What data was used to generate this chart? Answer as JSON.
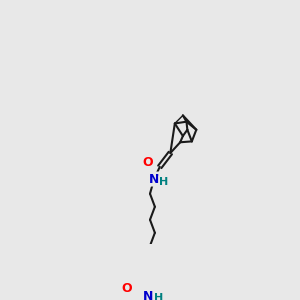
{
  "background_color": "#e8e8e8",
  "bond_color": "#1a1a1a",
  "atom_colors": {
    "O": "#ff0000",
    "N": "#0000cc",
    "H": "#008080",
    "C": "#1a1a1a"
  },
  "figsize": [
    3.0,
    3.0
  ],
  "dpi": 100
}
